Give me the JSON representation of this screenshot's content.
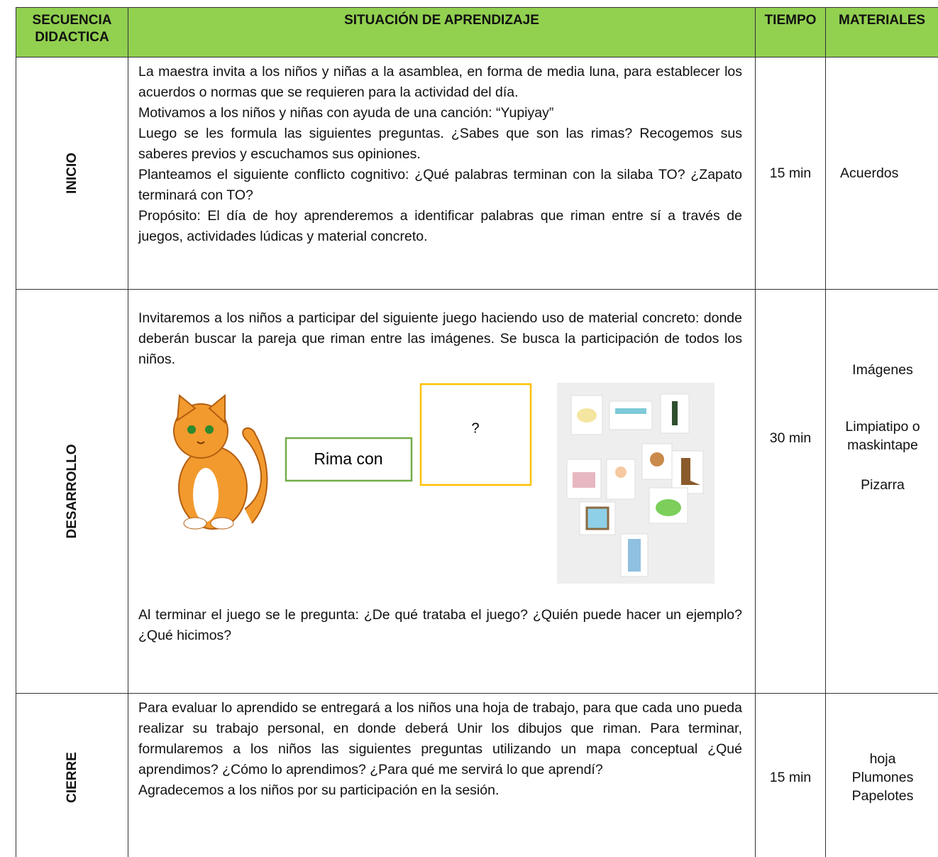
{
  "header": {
    "sequence": "SECUENCIA DIDACTICA",
    "situation": "SITUACIÓN DE APRENDIZAJE",
    "time": "TIEMPO",
    "materials": "MATERIALES"
  },
  "rows": [
    {
      "stage": "INICIO",
      "paragraphs": [
        "La maestra invita a los niños y niñas a la asamblea, en forma de media luna, para establecer los acuerdos o normas que se requieren para la actividad del día.",
        "Motivamos a los niños y niñas con ayuda de una canción: “Yupiyay”",
        "Luego se les formula las siguientes preguntas. ¿Sabes que son las rimas? Recogemos sus saberes previos y escuchamos sus opiniones.",
        "Planteamos el siguiente conflicto cognitivo: ¿Qué palabras terminan con la silaba TO? ¿Zapato terminará con TO?",
        "Propósito: El día de hoy aprenderemos a identificar palabras que riman entre sí a través de juegos, actividades lúdicas y material concreto."
      ],
      "time": "15 min",
      "materials": [
        "Acuerdos"
      ]
    },
    {
      "stage": "DESARROLLO",
      "paragraphs": [
        "Invitaremos a los niños a participar del siguiente juego haciendo uso de material concreto: donde deberán buscar la pareja que riman entre las imágenes. Se busca la participación de todos los niños.",
        "Al terminar el juego se le pregunta: ¿De qué trataba el juego? ¿Quién puede hacer un ejemplo? ¿Qué hicimos?"
      ],
      "diagram": {
        "rhyme_box": "Rima con",
        "question_box": "?"
      },
      "time": "30 min",
      "materials": [
        "Imágenes",
        "Limpiatipo o maskintape",
        "Pizarra"
      ]
    },
    {
      "stage": "CIERRE",
      "paragraphs": [
        "Para evaluar lo aprendido se entregará a los niños una hoja de trabajo, para que cada uno pueda realizar su trabajo personal, en donde deberá Unir los dibujos que riman. Para terminar, formularemos a los niños las siguientes preguntas utilizando un mapa conceptual ¿Qué aprendimos? ¿Cómo lo aprendimos? ¿Para qué me servirá lo que aprendí?",
        "Agradecemos a los niños por su participación en la sesión."
      ],
      "time": "15 min",
      "materials": [
        "hoja",
        "Plumones",
        "Papelotes"
      ]
    }
  ]
}
